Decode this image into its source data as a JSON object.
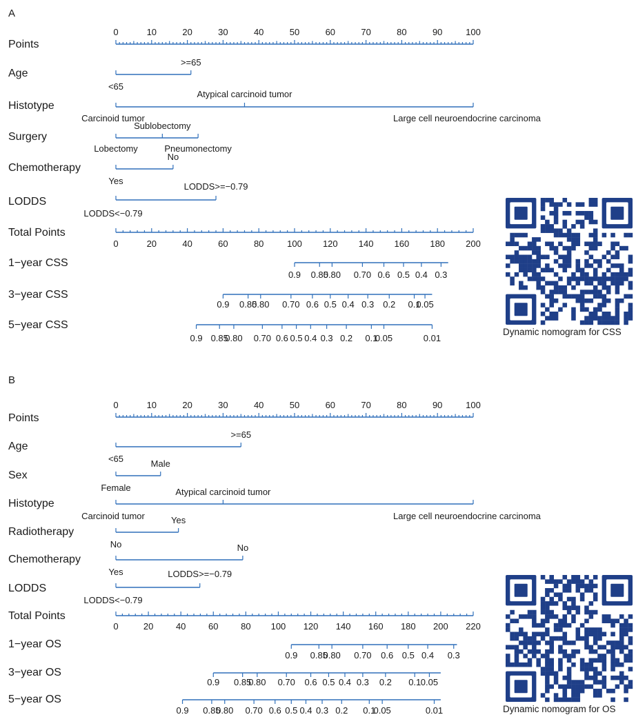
{
  "chart_data": [
    {
      "type": "nomogram",
      "panel_label": "A",
      "points_label": "Points",
      "points_ticks": [
        "0",
        "10",
        "20",
        "30",
        "40",
        "50",
        "60",
        "70",
        "80",
        "90",
        "100"
      ],
      "variables": [
        {
          "name": "Age",
          "levels": [
            {
              "label": "<65",
              "points": 0
            },
            {
              "label": ">=65",
              "points": 21
            }
          ]
        },
        {
          "name": "Histotype",
          "levels": [
            {
              "label": "Carcinoid tumor",
              "points": 0
            },
            {
              "label": "Atypical carcinoid tumor",
              "points": 36
            },
            {
              "label": "Large cell neuroendocrine carcinoma",
              "points": 100
            }
          ]
        },
        {
          "name": "Surgery",
          "levels": [
            {
              "label": "Lobectomy",
              "points": 0
            },
            {
              "label": "Sublobectomy",
              "points": 13
            },
            {
              "label": "Pneumonectomy",
              "points": 23
            }
          ]
        },
        {
          "name": "Chemotherapy",
          "levels": [
            {
              "label": "Yes",
              "points": 0
            },
            {
              "label": "No",
              "points": 16
            }
          ]
        },
        {
          "name": "LODDS",
          "levels": [
            {
              "label": "LODDS<−0.79",
              "points": 0
            },
            {
              "label": "LODDS>=−0.79",
              "points": 28
            }
          ]
        }
      ],
      "total_points_label": "Total Points",
      "total_points_ticks": [
        "0",
        "20",
        "40",
        "60",
        "80",
        "100",
        "120",
        "140",
        "160",
        "180",
        "200"
      ],
      "outcomes": [
        {
          "name": "1−year CSS",
          "range": [
            100,
            186
          ],
          "labels": [
            {
              "text": "0.9",
              "at": 100
            },
            {
              "text": "0.85",
              "at": 114
            },
            {
              "text": "0.80",
              "at": 121
            },
            {
              "text": "0.70",
              "at": 138
            },
            {
              "text": "0.6",
              "at": 150
            },
            {
              "text": "0.5",
              "at": 161
            },
            {
              "text": "0.4",
              "at": 171
            },
            {
              "text": "0.3",
              "at": 182
            }
          ]
        },
        {
          "name": "3−year CSS",
          "range": [
            60,
            177
          ],
          "labels": [
            {
              "text": "0.9",
              "at": 60
            },
            {
              "text": "0.85",
              "at": 74
            },
            {
              "text": "0.80",
              "at": 81
            },
            {
              "text": "0.70",
              "at": 98
            },
            {
              "text": "0.6",
              "at": 110
            },
            {
              "text": "0.5",
              "at": 120
            },
            {
              "text": "0.4",
              "at": 130
            },
            {
              "text": "0.3",
              "at": 141
            },
            {
              "text": "0.2",
              "at": 153
            },
            {
              "text": "0.1",
              "at": 167
            },
            {
              "text": "0.05",
              "at": 173
            }
          ]
        },
        {
          "name": "5−year CSS",
          "range": [
            45,
            177
          ],
          "labels": [
            {
              "text": "0.9",
              "at": 45
            },
            {
              "text": "0.85",
              "at": 58
            },
            {
              "text": "0.80",
              "at": 66
            },
            {
              "text": "0.70",
              "at": 82
            },
            {
              "text": "0.6",
              "at": 93
            },
            {
              "text": "0.5",
              "at": 101
            },
            {
              "text": "0.4",
              "at": 109
            },
            {
              "text": "0.3",
              "at": 118
            },
            {
              "text": "0.2",
              "at": 129
            },
            {
              "text": "0.1",
              "at": 143
            },
            {
              "text": "0.05",
              "at": 150
            },
            {
              "text": "0.01",
              "at": 177
            }
          ]
        }
      ],
      "qr_caption": "Dynamic nomogram for CSS"
    },
    {
      "type": "nomogram",
      "panel_label": "B",
      "points_label": "Points",
      "points_ticks": [
        "0",
        "10",
        "20",
        "30",
        "40",
        "50",
        "60",
        "70",
        "80",
        "90",
        "100"
      ],
      "variables": [
        {
          "name": "Age",
          "levels": [
            {
              "label": "<65",
              "points": 0
            },
            {
              "label": ">=65",
              "points": 35
            }
          ]
        },
        {
          "name": "Sex",
          "levels": [
            {
              "label": "Female",
              "points": 0
            },
            {
              "label": "Male",
              "points": 12.5
            }
          ]
        },
        {
          "name": "Histotype",
          "levels": [
            {
              "label": "Carcinoid tumor",
              "points": 0
            },
            {
              "label": "Atypical carcinoid tumor",
              "points": 30
            },
            {
              "label": "Large cell neuroendocrine carcinoma",
              "points": 100
            }
          ]
        },
        {
          "name": "Radiotherapy",
          "levels": [
            {
              "label": "No",
              "points": 0
            },
            {
              "label": "Yes",
              "points": 17.5
            }
          ]
        },
        {
          "name": "Chemotherapy",
          "levels": [
            {
              "label": "Yes",
              "points": 0
            },
            {
              "label": "No",
              "points": 35.5
            }
          ]
        },
        {
          "name": "LODDS",
          "levels": [
            {
              "label": "LODDS<−0.79",
              "points": 0
            },
            {
              "label": "LODDS>=−0.79",
              "points": 23.5
            }
          ]
        }
      ],
      "total_points_label": "Total Points",
      "total_points_ticks": [
        "0",
        "20",
        "40",
        "60",
        "80",
        "100",
        "120",
        "140",
        "160",
        "180",
        "200",
        "220"
      ],
      "outcomes": [
        {
          "name": "1−year OS",
          "range": [
            108,
            210
          ],
          "labels": [
            {
              "text": "0.9",
              "at": 108
            },
            {
              "text": "0.85",
              "at": 125
            },
            {
              "text": "0.80",
              "at": 133
            },
            {
              "text": "0.70",
              "at": 152
            },
            {
              "text": "0.6",
              "at": 167
            },
            {
              "text": "0.5",
              "at": 180
            },
            {
              "text": "0.4",
              "at": 192
            },
            {
              "text": "0.3",
              "at": 208
            }
          ]
        },
        {
          "name": "3−year OS",
          "range": [
            60,
            200
          ],
          "labels": [
            {
              "text": "0.9",
              "at": 60
            },
            {
              "text": "0.85",
              "at": 78
            },
            {
              "text": "0.80",
              "at": 87
            },
            {
              "text": "0.70",
              "at": 105
            },
            {
              "text": "0.6",
              "at": 120
            },
            {
              "text": "0.5",
              "at": 131
            },
            {
              "text": "0.4",
              "at": 141
            },
            {
              "text": "0.3",
              "at": 152
            },
            {
              "text": "0.2",
              "at": 166
            },
            {
              "text": "0.1",
              "at": 184
            },
            {
              "text": "0.05",
              "at": 193
            }
          ]
        },
        {
          "name": "5−year OS",
          "range": [
            41,
            200
          ],
          "labels": [
            {
              "text": "0.9",
              "at": 41
            },
            {
              "text": "0.85",
              "at": 59
            },
            {
              "text": "0.80",
              "at": 67
            },
            {
              "text": "0.70",
              "at": 85
            },
            {
              "text": "0.6",
              "at": 98
            },
            {
              "text": "0.5",
              "at": 108
            },
            {
              "text": "0.4",
              "at": 117
            },
            {
              "text": "0.3",
              "at": 127
            },
            {
              "text": "0.2",
              "at": 139
            },
            {
              "text": "0.1",
              "at": 156
            },
            {
              "text": "0.05",
              "at": 164
            },
            {
              "text": "0.01",
              "at": 196
            }
          ]
        }
      ],
      "qr_caption": "Dynamic nomogram for OS"
    }
  ],
  "colors": {
    "axis": "#2e6fba",
    "text": "#1a1a1a",
    "qr": "#1f3f88"
  }
}
